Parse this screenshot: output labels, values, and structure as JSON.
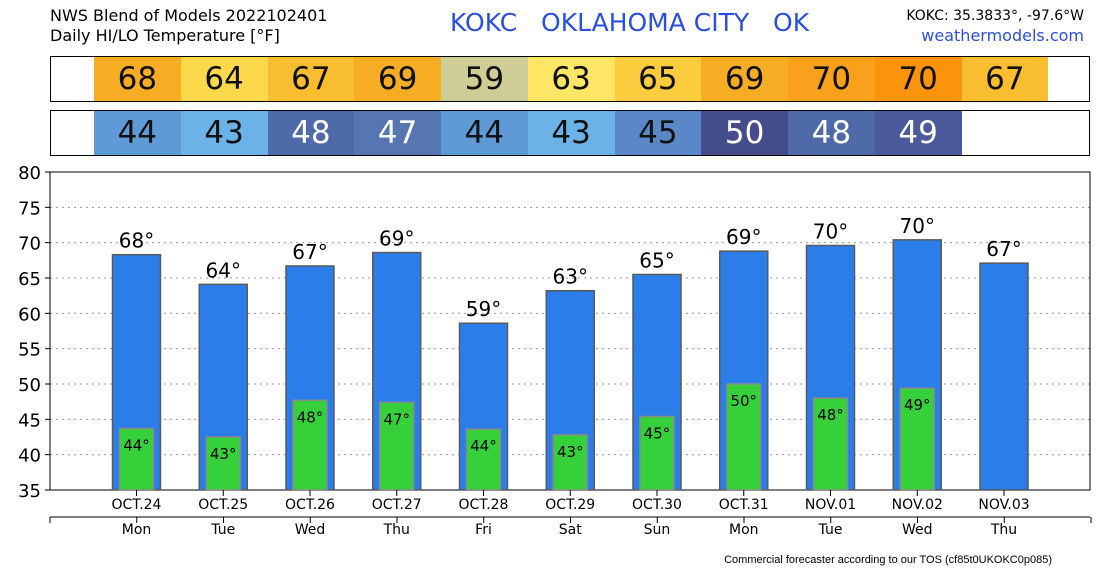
{
  "header": {
    "line1": "NWS Blend of Models 2022102401",
    "line2": "Daily HI/LO Temperature [°F]",
    "station": "KOKC   OKLAHOMA CITY   OK",
    "coords": "KOKC: 35.3833°, -97.6°W",
    "site": "weathermodels.com"
  },
  "strips": {
    "hi": [
      {
        "value": "68",
        "color": "#f7ad23"
      },
      {
        "value": "64",
        "color": "#fbd94a"
      },
      {
        "value": "67",
        "color": "#f9be30"
      },
      {
        "value": "69",
        "color": "#f7ad23"
      },
      {
        "value": "59",
        "color": "#cfcd96"
      },
      {
        "value": "63",
        "color": "#fde566"
      },
      {
        "value": "65",
        "color": "#fbcc3e"
      },
      {
        "value": "69",
        "color": "#f7ad23"
      },
      {
        "value": "70",
        "color": "#f9a11c"
      },
      {
        "value": "70",
        "color": "#fb940a"
      },
      {
        "value": "67",
        "color": "#f9be30"
      }
    ],
    "lo": [
      {
        "value": "44",
        "color": "#5e9ad6",
        "text": "#111111"
      },
      {
        "value": "43",
        "color": "#6bb2e6",
        "text": "#111111"
      },
      {
        "value": "48",
        "color": "#4f6aa8",
        "text": "#ffffff"
      },
      {
        "value": "47",
        "color": "#5576b2",
        "text": "#ffffff"
      },
      {
        "value": "44",
        "color": "#5e9ad6",
        "text": "#111111"
      },
      {
        "value": "43",
        "color": "#6bb2e6",
        "text": "#111111"
      },
      {
        "value": "45",
        "color": "#5a88c6",
        "text": "#111111"
      },
      {
        "value": "50",
        "color": "#454c8c",
        "text": "#ffffff"
      },
      {
        "value": "48",
        "color": "#4f6aa8",
        "text": "#ffffff"
      },
      {
        "value": "49",
        "color": "#4a5a9c",
        "text": "#ffffff"
      }
    ]
  },
  "chart_data": {
    "type": "bar",
    "categories": [
      "OCT.24",
      "OCT.25",
      "OCT.26",
      "OCT.27",
      "OCT.28",
      "OCT.29",
      "OCT.30",
      "OCT.31",
      "NOV.01",
      "NOV.02",
      "NOV.03"
    ],
    "days": [
      "Mon",
      "Tue",
      "Wed",
      "Thu",
      "Fri",
      "Sat",
      "Sun",
      "Mon",
      "Tue",
      "Wed",
      "Thu"
    ],
    "series": [
      {
        "values": [
          68.3,
          64.1,
          66.7,
          68.6,
          58.6,
          63.2,
          65.5,
          68.8,
          69.6,
          70.4,
          67.1
        ],
        "labels": [
          "68°",
          "64°",
          "67°",
          "69°",
          "59°",
          "63°",
          "65°",
          "69°",
          "70°",
          "70°",
          "67°"
        ],
        "color": "#2b7de9"
      },
      {
        "values": [
          43.7,
          42.5,
          47.7,
          47.4,
          43.6,
          42.8,
          45.4,
          50.0,
          48.0,
          49.4,
          null
        ],
        "labels": [
          "44°",
          "43°",
          "48°",
          "47°",
          "44°",
          "43°",
          "45°",
          "50°",
          "48°",
          "49°",
          ""
        ],
        "color": "#36d03a"
      }
    ],
    "ylim": [
      35,
      80
    ],
    "yticks": [
      35,
      40,
      45,
      50,
      55,
      60,
      65,
      70,
      75,
      80
    ],
    "grid": true
  },
  "footer": "Commercial forecaster according to our TOS (cf85t0UKOKC0p085)"
}
